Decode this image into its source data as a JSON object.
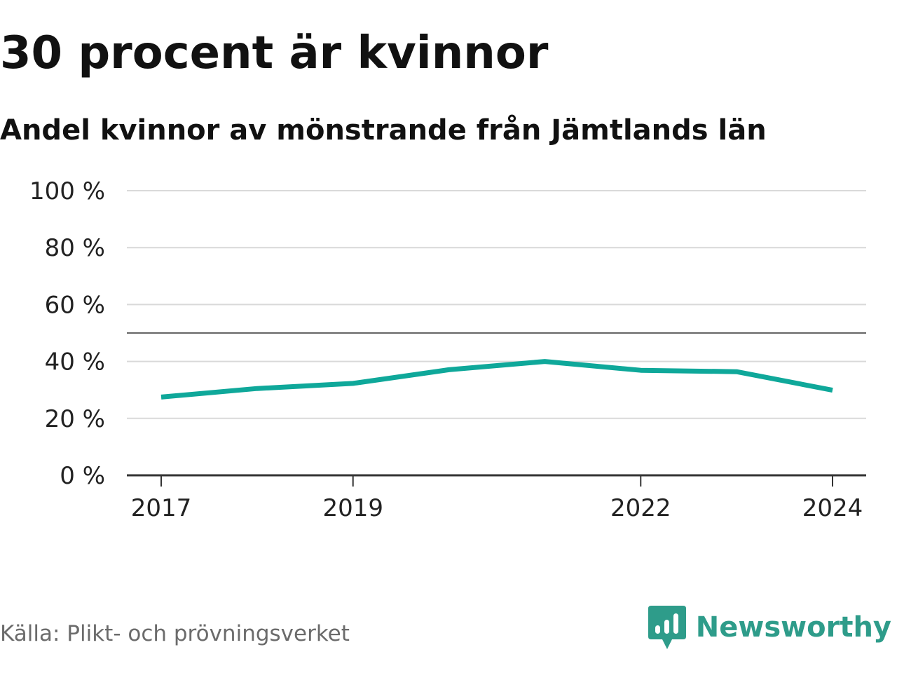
{
  "title": "30 procent är kvinnor",
  "subtitle": "Andel kvinnor av mönstrande från Jämtlands län",
  "source": "Källa: Plikt- och prövningsverket",
  "brand": {
    "name": "Newsworthy",
    "logo_icon": "speech-bubble-bar-chart-icon",
    "color": "#2e9c8a"
  },
  "chart_data": {
    "type": "line",
    "x": [
      2017,
      2018,
      2019,
      2020,
      2021,
      2022,
      2023,
      2024
    ],
    "series": [
      {
        "values": [
          27.5,
          30.5,
          32.3,
          37.1,
          40.0,
          36.9,
          36.4,
          29.9
        ],
        "color": "#0fa89a"
      }
    ],
    "xticks": [
      2017,
      2019,
      2022,
      2024
    ],
    "xtick_labels": [
      "2017",
      "2019",
      "2022",
      "2024"
    ],
    "yticks": [
      0,
      20,
      40,
      60,
      80,
      100
    ],
    "ytick_labels": [
      "0 %",
      "20 %",
      "40 %",
      "60 %",
      "80 %",
      "100 %"
    ],
    "ylim": [
      0,
      100
    ],
    "xlim": [
      2016.66,
      2024.57
    ],
    "reference_line": 50,
    "grid": true
  }
}
